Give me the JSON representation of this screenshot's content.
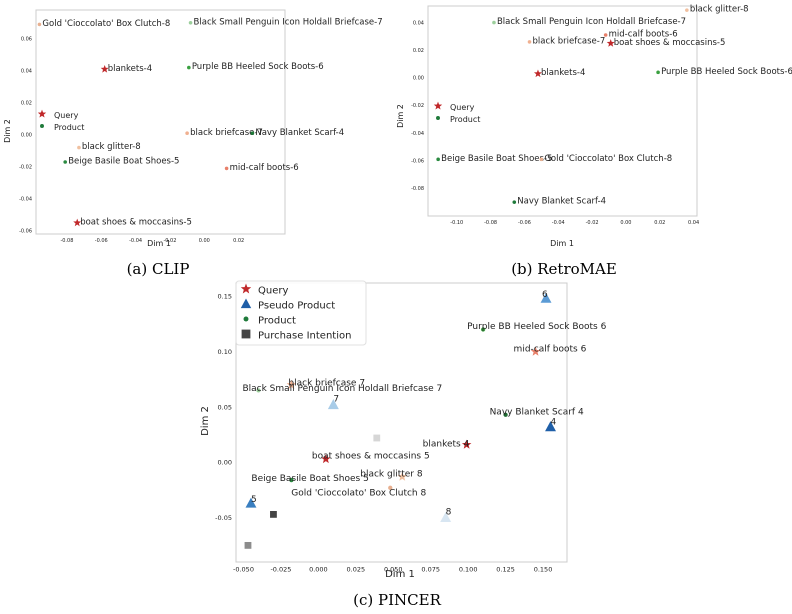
{
  "colors": {
    "query": "#c0282a",
    "product": "#1f7a3a",
    "pseudo": "#1f5fa8",
    "intention": "#444444"
  },
  "chart_data": [
    {
      "type": "scatter",
      "caption": "(a) CLIP",
      "xlabel": "Dim 1",
      "ylabel": "Dim 2",
      "xlim": [
        -0.098,
        0.047
      ],
      "ylim": [
        -0.062,
        0.078
      ],
      "xticks": [
        "-0.08",
        "-0.06",
        "-0.04",
        "-0.02",
        "0.00",
        "0.02"
      ],
      "xtick_values": [
        -0.08,
        -0.06,
        -0.04,
        -0.02,
        0.0,
        0.02
      ],
      "yticks": [
        "-0.06",
        "-0.04",
        "-0.02",
        "0.00",
        "0.02",
        "0.04",
        "0.06"
      ],
      "ytick_values": [
        -0.06,
        -0.04,
        -0.02,
        0.0,
        0.02,
        0.04,
        0.06
      ],
      "legend": {
        "position": "center-left",
        "entries": [
          {
            "label": "Query",
            "marker": "star",
            "color": "#c0282a"
          },
          {
            "label": "Product",
            "marker": "dot",
            "color": "#1f7a3a"
          }
        ]
      },
      "points": [
        {
          "label": "Gold 'Cioccolato' Box Clutch-8",
          "x": -0.096,
          "y": 0.069,
          "marker": "dot",
          "color": "#e8b090"
        },
        {
          "label": "Black Small Penguin Icon Holdall Briefcase-7",
          "x": -0.008,
          "y": 0.07,
          "marker": "dot",
          "color": "#9ccf9c"
        },
        {
          "label": "blankets-4",
          "x": -0.058,
          "y": 0.041,
          "marker": "star",
          "color": "#c0282a"
        },
        {
          "label": "Purple BB Heeled Sock Boots-6",
          "x": -0.009,
          "y": 0.042,
          "marker": "dot",
          "color": "#3aa040"
        },
        {
          "label": "black briefcase-7",
          "x": -0.01,
          "y": 0.001,
          "marker": "dot",
          "color": "#f0b090"
        },
        {
          "label": "Navy Blanket Scarf-4",
          "x": 0.028,
          "y": 0.001,
          "marker": "dot",
          "color": "#1f7a3a"
        },
        {
          "label": "black glitter-8",
          "x": -0.073,
          "y": -0.008,
          "marker": "dot",
          "color": "#f0c0a0"
        },
        {
          "label": "Beige Basile Boat Shoes-5",
          "x": -0.081,
          "y": -0.017,
          "marker": "dot",
          "color": "#2a8a40"
        },
        {
          "label": "mid-calf boots-6",
          "x": 0.013,
          "y": -0.021,
          "marker": "dot",
          "color": "#e8806a"
        },
        {
          "label": "boat shoes & moccasins-5",
          "x": -0.074,
          "y": -0.055,
          "marker": "star",
          "color": "#c0282a"
        }
      ]
    },
    {
      "type": "scatter",
      "caption": "(b) RetroMAE",
      "xlabel": "Dim 1",
      "ylabel": "Dim 2",
      "xlim": [
        -0.117,
        0.042
      ],
      "ylim": [
        -0.1,
        0.052
      ],
      "xticks": [
        "-0.10",
        "-0.08",
        "-0.06",
        "-0.04",
        "-0.02",
        "0.00",
        "0.02",
        "0.04"
      ],
      "xtick_values": [
        -0.1,
        -0.08,
        -0.06,
        -0.04,
        -0.02,
        0.0,
        0.02,
        0.04
      ],
      "yticks": [
        "-0.08",
        "-0.06",
        "-0.04",
        "-0.02",
        "0.00",
        "0.02",
        "0.04"
      ],
      "ytick_values": [
        -0.08,
        -0.06,
        -0.04,
        -0.02,
        0.0,
        0.02,
        0.04
      ],
      "legend": {
        "position": "center-left",
        "entries": [
          {
            "label": "Query",
            "marker": "star",
            "color": "#c0282a"
          },
          {
            "label": "Product",
            "marker": "dot",
            "color": "#1f7a3a"
          }
        ]
      },
      "points": [
        {
          "label": "black glitter-8",
          "x": 0.036,
          "y": 0.049,
          "marker": "dot",
          "color": "#f0c0a0"
        },
        {
          "label": "Black Small Penguin Icon Holdall Briefcase-7",
          "x": -0.078,
          "y": 0.04,
          "marker": "dot",
          "color": "#9ccf9c"
        },
        {
          "label": "mid-calf boots-6",
          "x": -0.012,
          "y": 0.031,
          "marker": "dot",
          "color": "#e8806a"
        },
        {
          "label": "black briefcase-7",
          "x": -0.057,
          "y": 0.026,
          "marker": "dot",
          "color": "#f0b090"
        },
        {
          "label": "boat shoes & moccasins-5",
          "x": -0.009,
          "y": 0.025,
          "marker": "star",
          "color": "#c0282a"
        },
        {
          "label": "blankets-4",
          "x": -0.052,
          "y": 0.003,
          "marker": "star",
          "color": "#c0282a"
        },
        {
          "label": "Purple BB Heeled Sock Boots-6",
          "x": 0.019,
          "y": 0.004,
          "marker": "dot",
          "color": "#3aa040"
        },
        {
          "label": "Beige Basile Boat Shoes-5",
          "x": -0.111,
          "y": -0.059,
          "marker": "dot",
          "color": "#2a8a40"
        },
        {
          "label": "Gold 'Cioccolato' Box Clutch-8",
          "x": -0.05,
          "y": -0.059,
          "marker": "dot",
          "color": "#e8b090"
        },
        {
          "label": "Navy Blanket Scarf-4",
          "x": -0.066,
          "y": -0.09,
          "marker": "dot",
          "color": "#1f7a3a"
        }
      ]
    },
    {
      "type": "scatter",
      "caption": "(c) PINCER",
      "xlabel": "Dim 1",
      "ylabel": "Dim 2",
      "xlim": [
        -0.055,
        0.166
      ],
      "ylim": [
        -0.09,
        0.162
      ],
      "xticks": [
        "-0.050",
        "-0.025",
        "0.000",
        "0.025",
        "0.050",
        "0.075",
        "0.100",
        "0.125",
        "0.150"
      ],
      "xtick_values": [
        -0.05,
        -0.025,
        0.0,
        0.025,
        0.05,
        0.075,
        0.1,
        0.125,
        0.15
      ],
      "yticks": [
        "-0.05",
        "0.00",
        "0.05",
        "0.10",
        "0.15"
      ],
      "ytick_values": [
        -0.05,
        0.0,
        0.05,
        0.1,
        0.15
      ],
      "legend": {
        "position": "top-left",
        "entries": [
          {
            "label": "Query",
            "marker": "star",
            "color": "#c0282a"
          },
          {
            "label": "Pseudo Product",
            "marker": "triangle",
            "color": "#1f5fa8"
          },
          {
            "label": "Product",
            "marker": "dot",
            "color": "#1f7a3a"
          },
          {
            "label": "Purchase Intention",
            "marker": "square",
            "color": "#444444"
          }
        ]
      },
      "points": [
        {
          "label": "6",
          "x": 0.152,
          "y": 0.148,
          "marker": "triangle",
          "color": "#5b9bd5"
        },
        {
          "label": "Purple BB Heeled Sock Boots 6",
          "x": 0.11,
          "y": 0.12,
          "marker": "dot",
          "color": "#3aa040"
        },
        {
          "label": "mid-calf boots 6",
          "x": 0.145,
          "y": 0.1,
          "marker": "star",
          "color": "#e8806a"
        },
        {
          "label": "black briefcase 7",
          "x": -0.018,
          "y": 0.07,
          "marker": "star",
          "color": "#f0b090"
        },
        {
          "label": "Black Small Penguin Icon Holdall Briefcase 7",
          "x": -0.04,
          "y": 0.065,
          "marker": "dot",
          "color": "#9ccf9c"
        },
        {
          "label": "7",
          "x": 0.01,
          "y": 0.052,
          "marker": "triangle",
          "color": "#a8cce8"
        },
        {
          "label": "Navy Blanket Scarf 4",
          "x": 0.125,
          "y": 0.043,
          "marker": "dot",
          "color": "#1f6a32"
        },
        {
          "label": "4",
          "x": 0.155,
          "y": 0.032,
          "marker": "triangle",
          "color": "#1f5fa8"
        },
        {
          "label": "blankets 4",
          "x": 0.099,
          "y": 0.016,
          "marker": "star",
          "color": "#c0282a"
        },
        {
          "label": "boat shoes & moccasins 5",
          "x": 0.005,
          "y": 0.003,
          "marker": "star",
          "color": "#c0282a"
        },
        {
          "label": "black glitter 8",
          "x": 0.056,
          "y": -0.013,
          "marker": "star",
          "color": "#f0c0a0"
        },
        {
          "label": "Beige Basile Boat Shoes 5",
          "x": -0.018,
          "y": -0.016,
          "marker": "dot",
          "color": "#2a8a40"
        },
        {
          "label": "Gold 'Cioccolato' Box Clutch 8",
          "x": 0.048,
          "y": -0.023,
          "marker": "dot",
          "color": "#e8b090"
        },
        {
          "label": "5",
          "x": -0.045,
          "y": -0.037,
          "marker": "triangle",
          "color": "#3a7fc0"
        },
        {
          "label": "8",
          "x": 0.085,
          "y": -0.05,
          "marker": "triangle",
          "color": "#d8e6f2"
        },
        {
          "label": "",
          "x": 0.039,
          "y": 0.022,
          "marker": "square",
          "color": "#d6d6d6"
        },
        {
          "label": "",
          "x": -0.03,
          "y": -0.047,
          "marker": "square",
          "color": "#444444"
        },
        {
          "label": "",
          "x": -0.047,
          "y": -0.075,
          "marker": "square",
          "color": "#8c8c8c"
        }
      ]
    }
  ]
}
